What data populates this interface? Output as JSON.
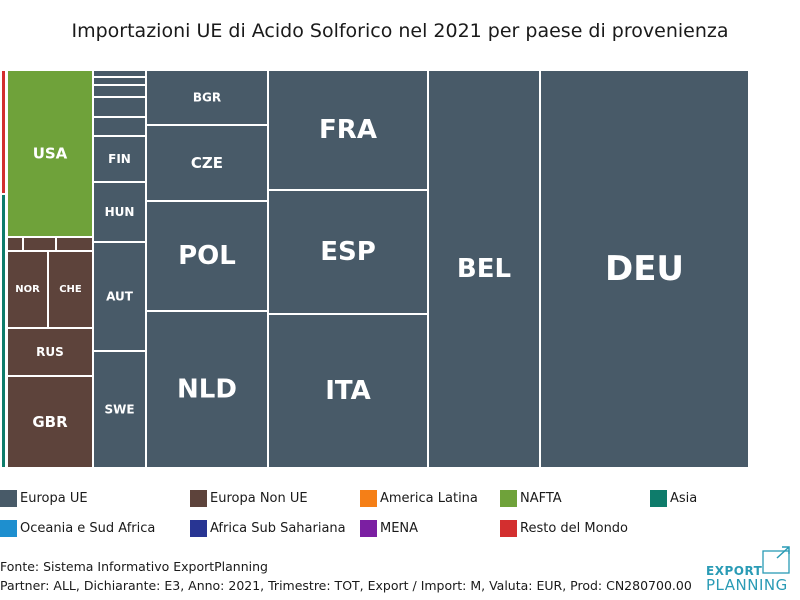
{
  "chart_data": {
    "type": "treemap",
    "title": "Importazioni UE di Acido Solforico nel 2021 per paese di provenienza",
    "groups": [
      {
        "name": "Europa UE",
        "color": "#485a68"
      },
      {
        "name": "Europa Non UE",
        "color": "#5d433b"
      },
      {
        "name": "America Latina",
        "color": "#f57f17"
      },
      {
        "name": "NAFTA",
        "color": "#6fa23a"
      },
      {
        "name": "Asia",
        "color": "#0e7c6b"
      },
      {
        "name": "Oceania e Sud Africa",
        "color": "#1e8fcf"
      },
      {
        "name": "Africa Sub Sahariana",
        "color": "#283593"
      },
      {
        "name": "MENA",
        "color": "#7b1fa2"
      },
      {
        "name": "Resto del Mondo",
        "color": "#d32f2f"
      }
    ],
    "data": [
      {
        "label": "DEU",
        "group": "Europa UE",
        "value": 20.9
      },
      {
        "label": "BEL",
        "group": "Europa UE",
        "value": 11.2
      },
      {
        "label": "FRA",
        "group": "Europa UE",
        "value": 4.7
      },
      {
        "label": "ESP",
        "group": "Europa UE",
        "value": 4.9
      },
      {
        "label": "ITA",
        "group": "Europa UE",
        "value": 6.2
      },
      {
        "label": "BGR",
        "group": "Europa UE",
        "value": 1.6
      },
      {
        "label": "CZE",
        "group": "Europa UE",
        "value": 2.3
      },
      {
        "label": "POL",
        "group": "Europa UE",
        "value": 3.3
      },
      {
        "label": "NLD",
        "group": "Europa UE",
        "value": 4.5
      },
      {
        "label": "",
        "group": "Europa UE",
        "value": 0.1
      },
      {
        "label": "",
        "group": "Europa UE",
        "value": 0.2
      },
      {
        "label": "",
        "group": "Europa UE",
        "value": 0.3
      },
      {
        "label": "",
        "group": "Europa UE",
        "value": 0.5
      },
      {
        "label": "",
        "group": "Europa UE",
        "value": 0.5
      },
      {
        "label": "FIN",
        "group": "Europa UE",
        "value": 0.6
      },
      {
        "label": "HUN",
        "group": "Europa UE",
        "value": 1.3
      },
      {
        "label": "AUT",
        "group": "Europa UE",
        "value": 2.4
      },
      {
        "label": "SWE",
        "group": "Europa UE",
        "value": 2.7
      },
      {
        "label": "USA",
        "group": "NAFTA",
        "value": 4.1
      },
      {
        "label": "",
        "group": "Europa Non UE",
        "value": 0.1
      },
      {
        "label": "",
        "group": "Europa Non UE",
        "value": 0.2
      },
      {
        "label": "",
        "group": "Europa Non UE",
        "value": 0.2
      },
      {
        "label": "NOR",
        "group": "Europa Non UE",
        "value": 1.0
      },
      {
        "label": "CHE",
        "group": "Europa Non UE",
        "value": 1.0
      },
      {
        "label": "RUS",
        "group": "Europa Non UE",
        "value": 1.2
      },
      {
        "label": "GBR",
        "group": "Europa Non UE",
        "value": 2.5
      },
      {
        "label": "",
        "group": "Resto del Mondo",
        "value": 0.2
      },
      {
        "label": "",
        "group": "Asia",
        "value": 0.4
      }
    ]
  },
  "legend": [
    {
      "label": "Europa UE",
      "color": "#485a68"
    },
    {
      "label": "Europa Non UE",
      "color": "#5d433b"
    },
    {
      "label": "America Latina",
      "color": "#f57f17"
    },
    {
      "label": "NAFTA",
      "color": "#6fa23a"
    },
    {
      "label": "Asia",
      "color": "#0e7c6b"
    },
    {
      "label": "Oceania e Sud Africa",
      "color": "#1e8fcf"
    },
    {
      "label": "Africa Sub Sahariana",
      "color": "#283593"
    },
    {
      "label": "MENA",
      "color": "#7b1fa2"
    },
    {
      "label": "Resto del Mondo",
      "color": "#d32f2f"
    }
  ],
  "footer": {
    "source": "Fonte: Sistema Informativo ExportPlanning",
    "meta": "Partner: ALL, Dichiarante: E3, Anno: 2021, Trimestre: TOT, Export / Import: M, Valuta: EUR, Prod: CN280700.00"
  },
  "logo": {
    "line1": "EXPORT",
    "line2": "PLANNING"
  }
}
